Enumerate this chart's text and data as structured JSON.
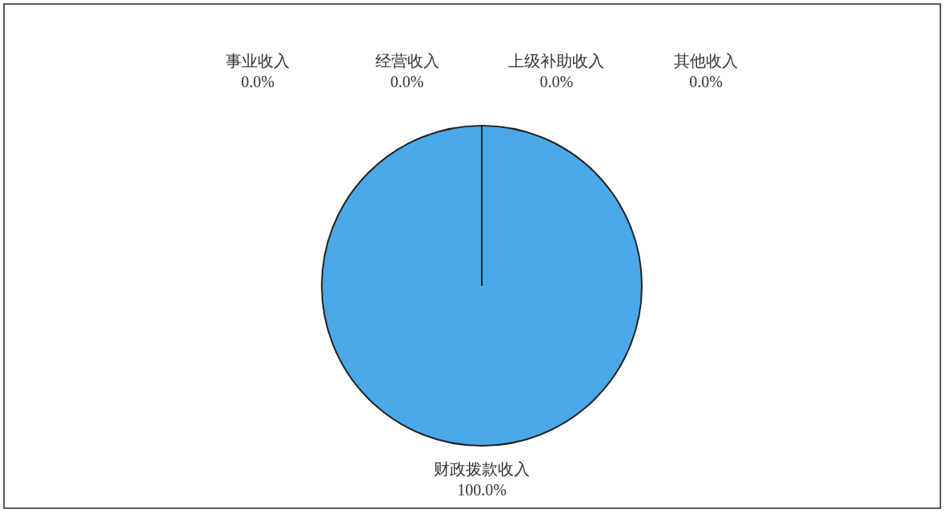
{
  "chart_data": {
    "type": "pie",
    "categories": [
      "财政拨款收入",
      "事业收入",
      "经营收入",
      "上级补助收入",
      "其他收入"
    ],
    "values": [
      100,
      0,
      0,
      0,
      0
    ],
    "colors": [
      "#4aa8e8",
      "#4aa8e8",
      "#4aa8e8",
      "#4aa8e8",
      "#4aa8e8"
    ],
    "value_labels": [
      "100.0%",
      "0.0%",
      "0.0%",
      "0.0%",
      "0.0%"
    ]
  }
}
